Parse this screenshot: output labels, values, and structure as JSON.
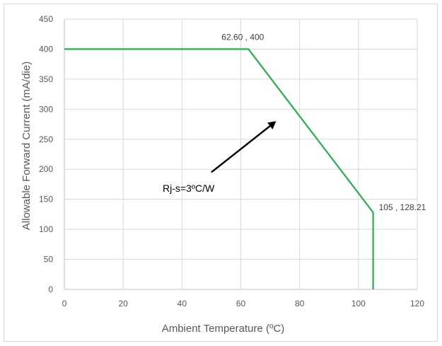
{
  "chart_data": {
    "type": "line",
    "xlabel": "Ambient Temperature (ºC)",
    "ylabel": "Allowable Forward Current (mA/die)",
    "xlim": [
      0,
      120
    ],
    "ylim": [
      0,
      450
    ],
    "x_ticks": [
      0,
      20,
      40,
      60,
      80,
      100,
      120
    ],
    "y_ticks": [
      0,
      50,
      100,
      150,
      200,
      250,
      300,
      350,
      400,
      450
    ],
    "grid": true,
    "series": [
      {
        "color": "#22b14c",
        "points": [
          [
            0,
            400
          ],
          [
            62.6,
            400
          ],
          [
            105,
            128.21
          ],
          [
            105,
            0
          ]
        ]
      }
    ],
    "point_labels": [
      {
        "text": "62.60 , 400",
        "x": 62.6,
        "y": 400
      },
      {
        "text": "105 , 128.21",
        "x": 105,
        "y": 128.21
      }
    ],
    "annotation": {
      "text": "Rj-s=3ºC/W",
      "arrow_from": [
        50,
        195
      ],
      "arrow_to": [
        72,
        280
      ]
    }
  }
}
